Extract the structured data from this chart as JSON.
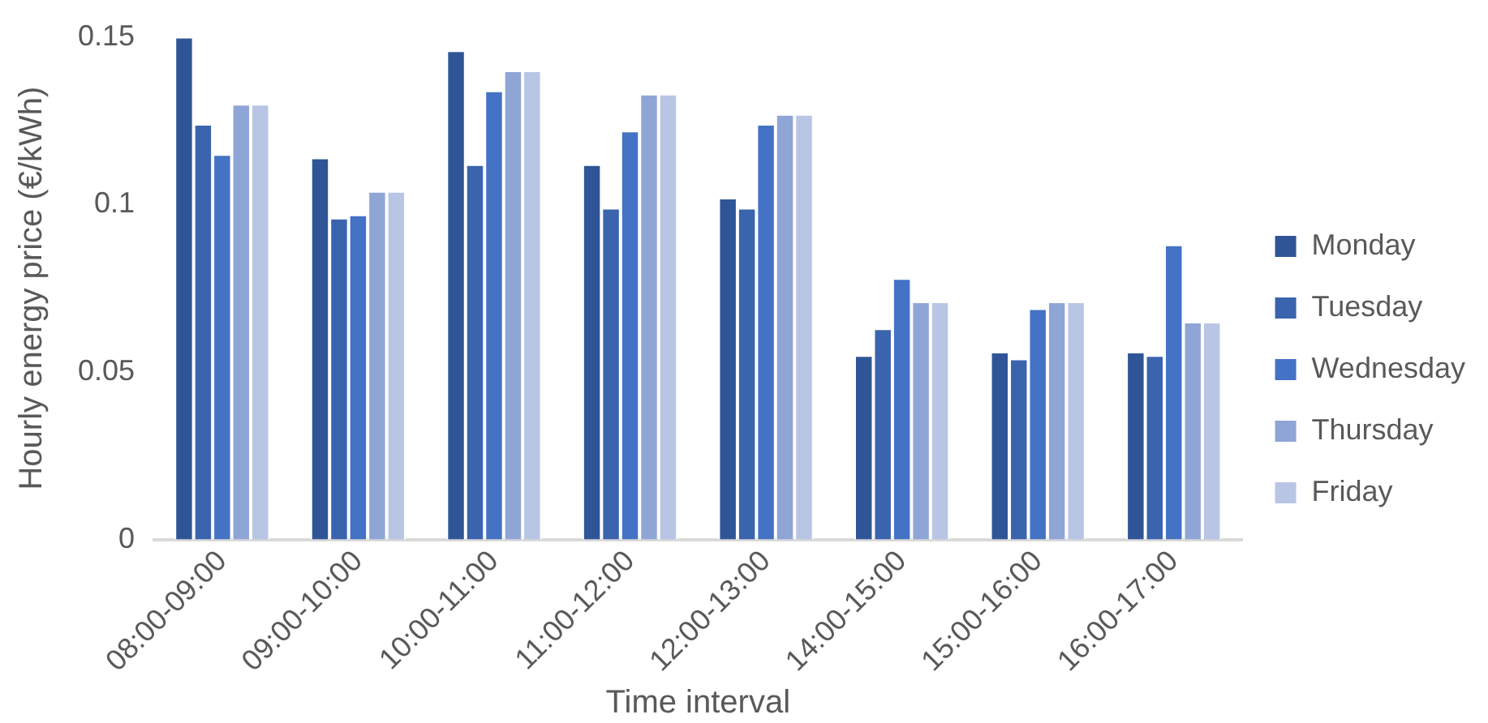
{
  "chart_data": {
    "type": "bar",
    "xlabel": "Time interval",
    "ylabel": "Hourly energy price (€/kWh)",
    "categories": [
      "08:00-09:00",
      "09:00-10:00",
      "10:00-11:00",
      "11:00-12:00",
      "12:00-13:00",
      "14:00-15:00",
      "15:00-16:00",
      "16:00-17:00"
    ],
    "series": [
      {
        "name": "Monday",
        "color": "#2f5597",
        "values": [
          0.15,
          0.114,
          0.146,
          0.112,
          0.102,
          0.055,
          0.056,
          0.056
        ]
      },
      {
        "name": "Tuesday",
        "color": "#3a64ad",
        "values": [
          0.124,
          0.096,
          0.112,
          0.099,
          0.099,
          0.063,
          0.054,
          0.055
        ]
      },
      {
        "name": "Wednesday",
        "color": "#4472c4",
        "values": [
          0.115,
          0.097,
          0.134,
          0.122,
          0.124,
          0.078,
          0.069,
          0.088
        ]
      },
      {
        "name": "Thursday",
        "color": "#8fa5d6",
        "values": [
          0.13,
          0.104,
          0.14,
          0.133,
          0.127,
          0.071,
          0.071,
          0.065
        ]
      },
      {
        "name": "Friday",
        "color": "#b9c5e5",
        "values": [
          0.13,
          0.104,
          0.14,
          0.133,
          0.127,
          0.071,
          0.071,
          0.065
        ]
      }
    ],
    "ylim": [
      0,
      0.15
    ],
    "yticks": [
      0,
      0.05,
      0.1,
      0.15
    ],
    "grid": false,
    "legend": "right"
  }
}
